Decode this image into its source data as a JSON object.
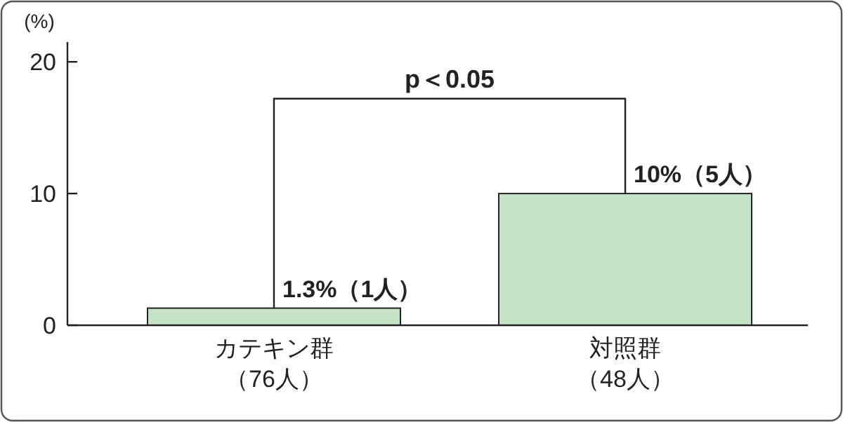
{
  "chart_data": {
    "type": "bar",
    "ylabel": "(%)",
    "categories": [
      "カテキン群（76人）",
      "対照群（48人）"
    ],
    "values": [
      1.3,
      10
    ],
    "value_labels": [
      "1.3%（1人）",
      "10%（5人）"
    ],
    "color": "#c6e3c9",
    "ylim": [
      0,
      21.5
    ],
    "yticks": [
      0,
      10,
      20
    ],
    "grid": false,
    "annotations": [
      "p＜0.05"
    ]
  }
}
